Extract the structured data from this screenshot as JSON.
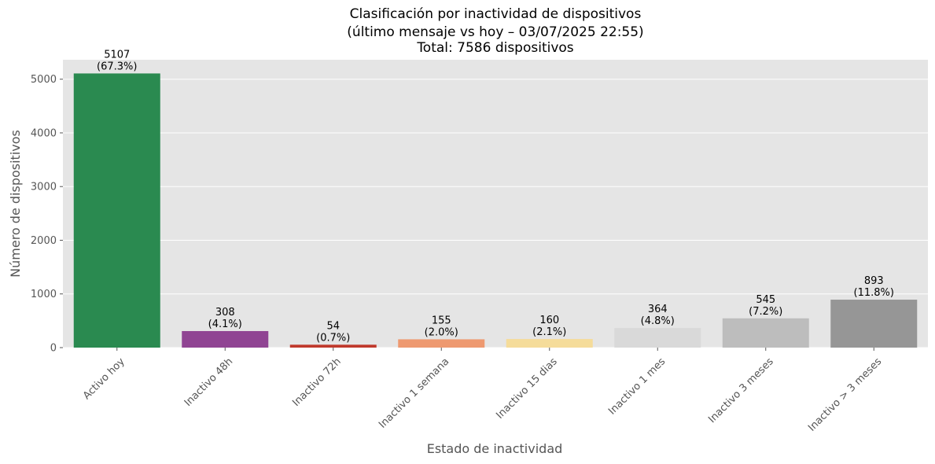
{
  "chart_data": {
    "type": "bar",
    "title": [
      "Clasificación por inactividad de dispositivos",
      "(último mensaje vs hoy – 03/07/2025 22:55)",
      "Total: 7586 dispositivos"
    ],
    "xlabel": "Estado de inactividad",
    "ylabel": "Número de dispositivos",
    "ylim": [
      0,
      5362
    ],
    "yticks": [
      0,
      1000,
      2000,
      3000,
      4000,
      5000
    ],
    "grid": true,
    "categories": [
      "Activo hoy",
      "Inactivo 48h",
      "Inactivo 72h",
      "Inactivo 1 semana",
      "Inactivo 15 dias",
      "Inactivo 1 mes",
      "Inactivo 3 meses",
      "Inactivo > 3 meses"
    ],
    "values": [
      5107,
      308,
      54,
      155,
      160,
      364,
      545,
      893
    ],
    "percent_labels": [
      "(67.3%)",
      "(4.1%)",
      "(0.7%)",
      "(2.0%)",
      "(2.1%)",
      "(4.8%)",
      "(7.2%)",
      "(11.8%)"
    ],
    "colors": [
      "#2a8a50",
      "#904493",
      "#c0392b",
      "#ee9970",
      "#f5dc9a",
      "#d9d9d9",
      "#bdbdbd",
      "#969696"
    ],
    "background": "#e5e5e5"
  }
}
